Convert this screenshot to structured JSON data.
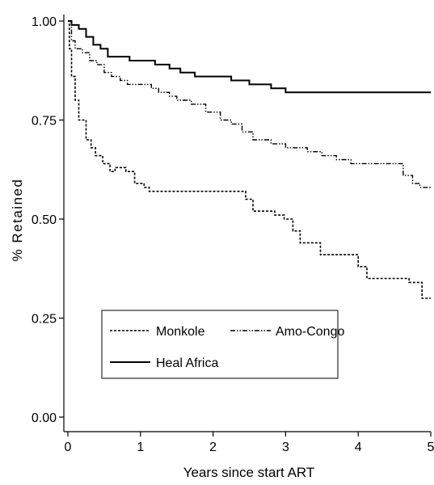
{
  "chart_data": {
    "type": "line",
    "xlabel": "Years since start ART",
    "ylabel": "% Retained",
    "xlim": [
      0,
      5
    ],
    "ylim": [
      0,
      1
    ],
    "xticks": [
      0,
      1,
      2,
      3,
      4,
      5
    ],
    "yticks": [
      0.0,
      0.25,
      0.5,
      0.75,
      1.0
    ],
    "xtick_labels": [
      "0",
      "1",
      "2",
      "3",
      "4",
      "5"
    ],
    "ytick_labels": [
      "0.00",
      "0.25",
      "0.50",
      "0.75",
      "1.00"
    ],
    "grid": false,
    "legend_position": "bottom-left",
    "series": [
      {
        "name": "Monkole",
        "style": "dashed",
        "step": true,
        "points": [
          [
            0.0,
            1.0
          ],
          [
            0.02,
            0.93
          ],
          [
            0.05,
            0.86
          ],
          [
            0.1,
            0.8
          ],
          [
            0.15,
            0.75
          ],
          [
            0.25,
            0.7
          ],
          [
            0.32,
            0.68
          ],
          [
            0.38,
            0.66
          ],
          [
            0.48,
            0.64
          ],
          [
            0.58,
            0.62
          ],
          [
            0.65,
            0.63
          ],
          [
            0.8,
            0.62
          ],
          [
            0.92,
            0.59
          ],
          [
            1.05,
            0.58
          ],
          [
            1.12,
            0.57
          ],
          [
            1.4,
            0.57
          ],
          [
            2.0,
            0.57
          ],
          [
            2.45,
            0.55
          ],
          [
            2.55,
            0.52
          ],
          [
            2.85,
            0.51
          ],
          [
            2.98,
            0.5
          ],
          [
            3.1,
            0.47
          ],
          [
            3.2,
            0.44
          ],
          [
            3.38,
            0.44
          ],
          [
            3.48,
            0.41
          ],
          [
            3.8,
            0.41
          ],
          [
            4.0,
            0.38
          ],
          [
            4.12,
            0.35
          ],
          [
            4.25,
            0.35
          ],
          [
            4.7,
            0.34
          ],
          [
            4.88,
            0.3
          ],
          [
            5.0,
            0.3
          ]
        ]
      },
      {
        "name": "Amo-Congo",
        "style": "dash-dot",
        "step": true,
        "points": [
          [
            0.0,
            1.0
          ],
          [
            0.05,
            0.95
          ],
          [
            0.1,
            0.93
          ],
          [
            0.2,
            0.92
          ],
          [
            0.3,
            0.9
          ],
          [
            0.4,
            0.89
          ],
          [
            0.5,
            0.87
          ],
          [
            0.6,
            0.86
          ],
          [
            0.72,
            0.85
          ],
          [
            0.82,
            0.84
          ],
          [
            1.0,
            0.84
          ],
          [
            1.15,
            0.83
          ],
          [
            1.25,
            0.82
          ],
          [
            1.4,
            0.81
          ],
          [
            1.5,
            0.8
          ],
          [
            1.7,
            0.79
          ],
          [
            1.9,
            0.77
          ],
          [
            2.1,
            0.75
          ],
          [
            2.25,
            0.74
          ],
          [
            2.4,
            0.72
          ],
          [
            2.55,
            0.7
          ],
          [
            2.8,
            0.69
          ],
          [
            3.0,
            0.68
          ],
          [
            3.15,
            0.68
          ],
          [
            3.3,
            0.67
          ],
          [
            3.5,
            0.66
          ],
          [
            3.7,
            0.65
          ],
          [
            3.9,
            0.64
          ],
          [
            4.15,
            0.64
          ],
          [
            4.4,
            0.64
          ],
          [
            4.62,
            0.61
          ],
          [
            4.75,
            0.59
          ],
          [
            4.85,
            0.58
          ],
          [
            5.0,
            0.58
          ]
        ]
      },
      {
        "name": "Heal Africa",
        "style": "solid",
        "step": true,
        "points": [
          [
            0.0,
            1.0
          ],
          [
            0.05,
            0.99
          ],
          [
            0.15,
            0.98
          ],
          [
            0.25,
            0.96
          ],
          [
            0.35,
            0.94
          ],
          [
            0.45,
            0.93
          ],
          [
            0.55,
            0.91
          ],
          [
            0.75,
            0.91
          ],
          [
            0.85,
            0.9
          ],
          [
            1.0,
            0.9
          ],
          [
            1.2,
            0.89
          ],
          [
            1.4,
            0.88
          ],
          [
            1.55,
            0.87
          ],
          [
            1.75,
            0.86
          ],
          [
            2.0,
            0.86
          ],
          [
            2.25,
            0.85
          ],
          [
            2.5,
            0.84
          ],
          [
            2.8,
            0.83
          ],
          [
            3.0,
            0.82
          ],
          [
            3.5,
            0.82
          ],
          [
            4.0,
            0.82
          ],
          [
            5.0,
            0.82
          ]
        ]
      }
    ]
  }
}
